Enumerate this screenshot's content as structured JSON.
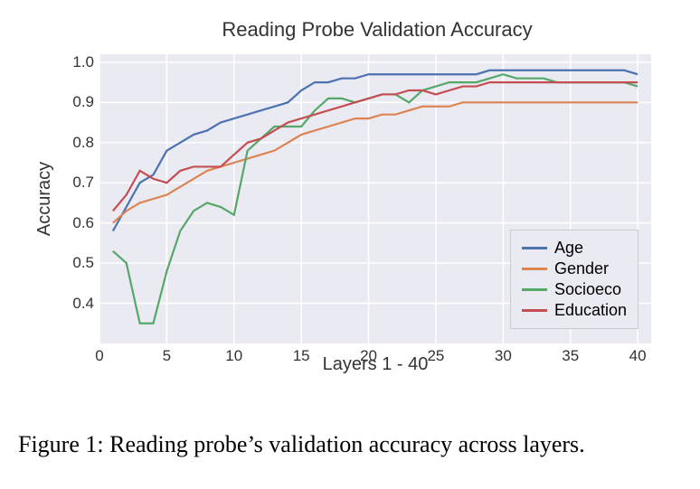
{
  "chart": {
    "type": "line",
    "title": "Reading Probe Validation Accuracy",
    "title_fontsize": 22,
    "xlabel": "Layers 1 - 40",
    "ylabel": "Accuracy",
    "label_fontsize": 20,
    "tick_fontsize": 17,
    "background_color": "#eaeaf2",
    "grid_color": "#ffffff",
    "xlim": [
      0,
      41
    ],
    "ylim": [
      0.3,
      1.02
    ],
    "xticks": [
      0,
      5,
      10,
      15,
      20,
      25,
      30,
      35,
      40
    ],
    "yticks": [
      0.4,
      0.5,
      0.6,
      0.7,
      0.8,
      0.9,
      1.0
    ],
    "x": [
      1,
      2,
      3,
      4,
      5,
      6,
      7,
      8,
      9,
      10,
      11,
      12,
      13,
      14,
      15,
      16,
      17,
      18,
      19,
      20,
      21,
      22,
      23,
      24,
      25,
      26,
      27,
      28,
      29,
      30,
      31,
      32,
      33,
      34,
      35,
      36,
      37,
      38,
      39,
      40
    ],
    "legend_position": "lower right",
    "legend_border_color": "#cccccc",
    "legend_fontsize": 18,
    "line_width": 2.2,
    "series": [
      {
        "name": "Age",
        "color": "#4c72b0",
        "y": [
          0.58,
          0.64,
          0.7,
          0.72,
          0.78,
          0.8,
          0.82,
          0.83,
          0.85,
          0.86,
          0.87,
          0.88,
          0.89,
          0.9,
          0.93,
          0.95,
          0.95,
          0.96,
          0.96,
          0.97,
          0.97,
          0.97,
          0.97,
          0.97,
          0.97,
          0.97,
          0.97,
          0.97,
          0.98,
          0.98,
          0.98,
          0.98,
          0.98,
          0.98,
          0.98,
          0.98,
          0.98,
          0.98,
          0.98,
          0.97
        ]
      },
      {
        "name": "Gender",
        "color": "#dd8452",
        "y": [
          0.6,
          0.63,
          0.65,
          0.66,
          0.67,
          0.69,
          0.71,
          0.73,
          0.74,
          0.75,
          0.76,
          0.77,
          0.78,
          0.8,
          0.82,
          0.83,
          0.84,
          0.85,
          0.86,
          0.86,
          0.87,
          0.87,
          0.88,
          0.89,
          0.89,
          0.89,
          0.9,
          0.9,
          0.9,
          0.9,
          0.9,
          0.9,
          0.9,
          0.9,
          0.9,
          0.9,
          0.9,
          0.9,
          0.9,
          0.9
        ]
      },
      {
        "name": "Socioeco",
        "color": "#55a868",
        "y": [
          0.53,
          0.5,
          0.35,
          0.35,
          0.48,
          0.58,
          0.63,
          0.65,
          0.64,
          0.62,
          0.78,
          0.81,
          0.84,
          0.84,
          0.84,
          0.88,
          0.91,
          0.91,
          0.9,
          0.91,
          0.92,
          0.92,
          0.9,
          0.93,
          0.94,
          0.95,
          0.95,
          0.95,
          0.96,
          0.97,
          0.96,
          0.96,
          0.96,
          0.95,
          0.95,
          0.95,
          0.95,
          0.95,
          0.95,
          0.94
        ]
      },
      {
        "name": "Education",
        "color": "#c44e52",
        "y": [
          0.63,
          0.67,
          0.73,
          0.71,
          0.7,
          0.73,
          0.74,
          0.74,
          0.74,
          0.77,
          0.8,
          0.81,
          0.83,
          0.85,
          0.86,
          0.87,
          0.88,
          0.89,
          0.9,
          0.91,
          0.92,
          0.92,
          0.93,
          0.93,
          0.92,
          0.93,
          0.94,
          0.94,
          0.95,
          0.95,
          0.95,
          0.95,
          0.95,
          0.95,
          0.95,
          0.95,
          0.95,
          0.95,
          0.95,
          0.95
        ]
      }
    ]
  },
  "caption": "Figure 1: Reading probe’s validation accuracy across layers."
}
